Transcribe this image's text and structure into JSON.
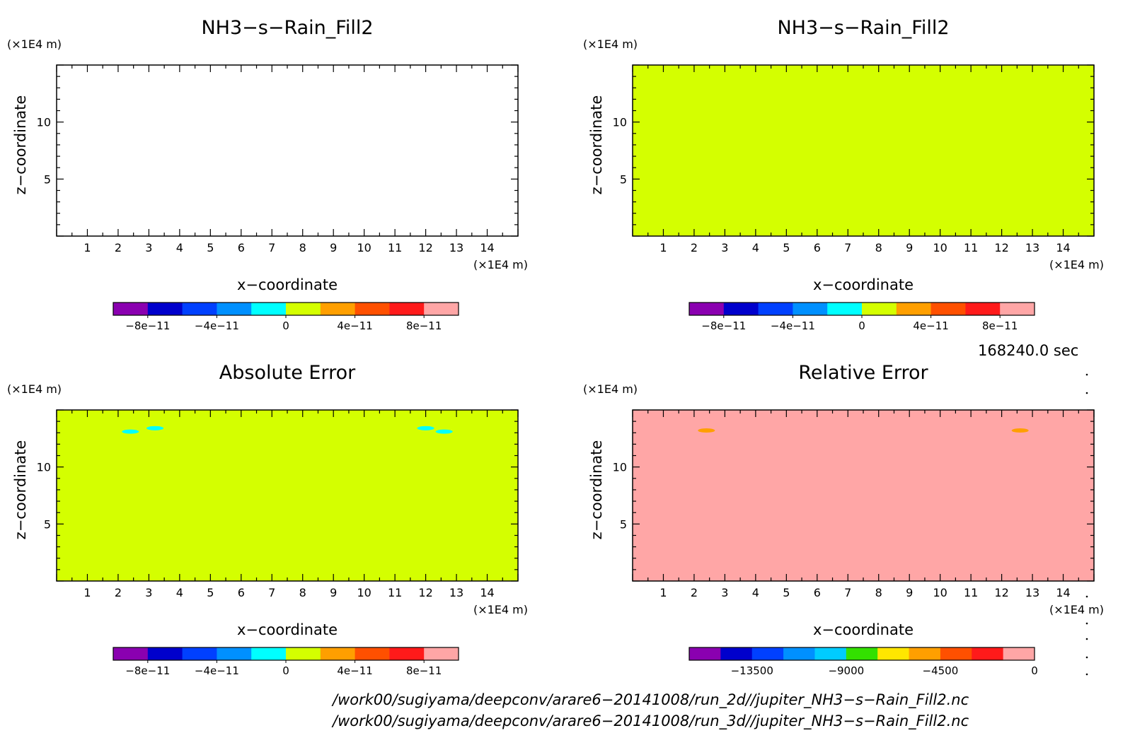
{
  "chart_data": [
    {
      "type": "heatmap",
      "title": "NH3−s−Rain_Fill2",
      "xlabel": "x−coordinate",
      "ylabel": "z−coordinate",
      "x_unit": "(×1E4 m)",
      "y_unit": "(×1E4 m)",
      "xlim": [
        0,
        15
      ],
      "ylim": [
        0,
        15
      ],
      "x_ticks": [
        "1",
        "2",
        "3",
        "4",
        "5",
        "6",
        "7",
        "8",
        "9",
        "10",
        "11",
        "12",
        "13",
        "14"
      ],
      "y_ticks": [
        "5",
        "10"
      ],
      "fill": "none",
      "colorbar": {
        "colors": [
          "#8a00b0",
          "#0000cc",
          "#0040ff",
          "#0090ff",
          "#00ffff",
          "#d4ff00",
          "#ff9f00",
          "#ff5000",
          "#ff1a1a",
          "#ffa6a6"
        ],
        "labels": [
          "−8e−11",
          "−4e−11",
          "0",
          "4e−11",
          "8e−11"
        ]
      }
    },
    {
      "type": "heatmap",
      "title": "NH3−s−Rain_Fill2",
      "xlabel": "x−coordinate",
      "ylabel": "z−coordinate",
      "x_unit": "(×1E4 m)",
      "y_unit": "(×1E4 m)",
      "xlim": [
        0,
        15
      ],
      "ylim": [
        0,
        15
      ],
      "x_ticks": [
        "1",
        "2",
        "3",
        "4",
        "5",
        "6",
        "7",
        "8",
        "9",
        "10",
        "11",
        "12",
        "13",
        "14"
      ],
      "y_ticks": [
        "5",
        "10"
      ],
      "fill": "#d4ff00",
      "colorbar": {
        "colors": [
          "#8a00b0",
          "#0000cc",
          "#0040ff",
          "#0090ff",
          "#00ffff",
          "#d4ff00",
          "#ff9f00",
          "#ff5000",
          "#ff1a1a",
          "#ffa6a6"
        ],
        "labels": [
          "−8e−11",
          "−4e−11",
          "0",
          "4e−11",
          "8e−11"
        ]
      }
    },
    {
      "type": "heatmap",
      "title": "Absolute Error",
      "xlabel": "x−coordinate",
      "ylabel": "z−coordinate",
      "x_unit": "(×1E4 m)",
      "y_unit": "(×1E4 m)",
      "xlim": [
        0,
        15
      ],
      "ylim": [
        0,
        15
      ],
      "x_ticks": [
        "1",
        "2",
        "3",
        "4",
        "5",
        "6",
        "7",
        "8",
        "9",
        "10",
        "11",
        "12",
        "13",
        "14"
      ],
      "y_ticks": [
        "5",
        "10"
      ],
      "fill": "#d4ff00",
      "features": [
        {
          "x": 2.4,
          "z": 13.1,
          "color": "#00ffff"
        },
        {
          "x": 3.2,
          "z": 13.4,
          "color": "#00ffff"
        },
        {
          "x": 12.0,
          "z": 13.4,
          "color": "#00ffff"
        },
        {
          "x": 12.6,
          "z": 13.1,
          "color": "#00ffff"
        }
      ],
      "colorbar": {
        "colors": [
          "#8a00b0",
          "#0000cc",
          "#0040ff",
          "#0090ff",
          "#00ffff",
          "#d4ff00",
          "#ff9f00",
          "#ff5000",
          "#ff1a1a",
          "#ffa6a6"
        ],
        "labels": [
          "−8e−11",
          "−4e−11",
          "0",
          "4e−11",
          "8e−11"
        ]
      }
    },
    {
      "type": "heatmap",
      "title": "Relative Error",
      "xlabel": "x−coordinate",
      "ylabel": "z−coordinate",
      "x_unit": "(×1E4 m)",
      "y_unit": "(×1E4 m)",
      "xlim": [
        0,
        15
      ],
      "ylim": [
        0,
        15
      ],
      "x_ticks": [
        "1",
        "2",
        "3",
        "4",
        "5",
        "6",
        "7",
        "8",
        "9",
        "10",
        "11",
        "12",
        "13",
        "14"
      ],
      "y_ticks": [
        "5",
        "10"
      ],
      "fill": "#ffa6a6",
      "features": [
        {
          "x": 2.4,
          "z": 13.2,
          "color": "#ff9f00"
        },
        {
          "x": 12.6,
          "z": 13.2,
          "color": "#ff9f00"
        }
      ],
      "colorbar": {
        "colors": [
          "#8a00b0",
          "#0000cc",
          "#0040ff",
          "#0090ff",
          "#00ccff",
          "#33e000",
          "#ffe600",
          "#ff9f00",
          "#ff5000",
          "#ff1a1a",
          "#ffa6a6"
        ],
        "labels": [
          "−13500",
          "−9000",
          "−4500",
          "0"
        ]
      }
    }
  ],
  "time_label": "168240.0 sec",
  "footer": {
    "line1": "/work00/sugiyama/deepconv/arare6−20141008/run_2d//jupiter_NH3−s−Rain_Fill2.nc",
    "line2": "/work00/sugiyama/deepconv/arare6−20141008/run_3d//jupiter_NH3−s−Rain_Fill2.nc"
  }
}
